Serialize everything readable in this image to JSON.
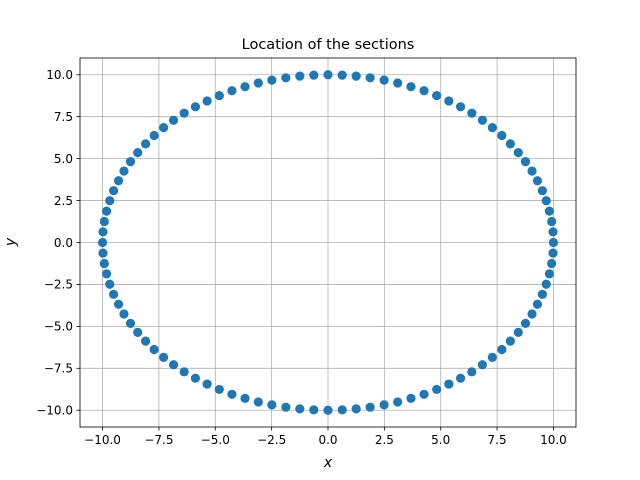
{
  "chart_data": {
    "type": "scatter",
    "title": "Location of the sections",
    "xlabel": "x",
    "ylabel": "y",
    "xlim": [
      -11,
      11
    ],
    "ylim": [
      -11,
      11
    ],
    "grid": true,
    "marker_color": "#1f77b4",
    "xticks": [
      -10.0,
      -7.5,
      -5.0,
      -2.5,
      0.0,
      2.5,
      5.0,
      7.5,
      10.0
    ],
    "xtick_labels": [
      "−10.0",
      "−7.5",
      "−5.0",
      "−2.5",
      "0.0",
      "2.5",
      "5.0",
      "7.5",
      "10.0"
    ],
    "yticks": [
      10.0,
      7.5,
      5.0,
      2.5,
      0.0,
      -2.5,
      -5.0,
      -7.5,
      -10.0
    ],
    "ytick_labels": [
      "10.0",
      "7.5",
      "5.0",
      "2.5",
      "0.0",
      "−2.5",
      "−5.0",
      "−7.5",
      "−10.0"
    ],
    "series": [
      {
        "x": [
          10.0,
          9.98,
          9.92,
          9.82,
          9.68,
          9.51,
          9.29,
          9.05,
          8.76,
          8.44,
          8.09,
          7.71,
          7.29,
          6.85,
          6.38,
          5.88,
          5.36,
          4.82,
          4.26,
          3.68,
          3.09,
          2.49,
          1.87,
          1.25,
          0.63,
          0.0,
          -0.63,
          -1.25,
          -1.87,
          -2.49,
          -3.09,
          -3.68,
          -4.26,
          -4.82,
          -5.36,
          -5.88,
          -6.38,
          -6.85,
          -7.29,
          -7.71,
          -8.09,
          -8.44,
          -8.76,
          -9.05,
          -9.29,
          -9.51,
          -9.68,
          -9.82,
          -9.92,
          -9.98,
          -10.0,
          -9.98,
          -9.92,
          -9.82,
          -9.68,
          -9.51,
          -9.29,
          -9.05,
          -8.76,
          -8.44,
          -8.09,
          -7.71,
          -7.29,
          -6.85,
          -6.38,
          -5.88,
          -5.36,
          -4.82,
          -4.26,
          -3.68,
          -3.09,
          -2.49,
          -1.87,
          -1.25,
          -0.63,
          0.0,
          0.63,
          1.25,
          1.87,
          2.49,
          3.09,
          3.68,
          4.26,
          4.82,
          5.36,
          5.88,
          6.38,
          6.85,
          7.29,
          7.71,
          8.09,
          8.44,
          8.76,
          9.05,
          9.29,
          9.51,
          9.68,
          9.82,
          9.92,
          9.98
        ],
        "y": [
          0.0,
          0.63,
          1.25,
          1.87,
          2.49,
          3.09,
          3.68,
          4.26,
          4.82,
          5.36,
          5.88,
          6.38,
          6.85,
          7.29,
          7.71,
          8.09,
          8.44,
          8.76,
          9.05,
          9.29,
          9.51,
          9.68,
          9.82,
          9.92,
          9.98,
          10.0,
          9.98,
          9.92,
          9.82,
          9.68,
          9.51,
          9.29,
          9.05,
          8.76,
          8.44,
          8.09,
          7.71,
          7.29,
          6.85,
          6.38,
          5.88,
          5.36,
          4.82,
          4.26,
          3.68,
          3.09,
          2.49,
          1.87,
          1.25,
          0.63,
          0.0,
          -0.63,
          -1.25,
          -1.87,
          -2.49,
          -3.09,
          -3.68,
          -4.26,
          -4.82,
          -5.36,
          -5.88,
          -6.38,
          -6.85,
          -7.29,
          -7.71,
          -8.09,
          -8.44,
          -8.76,
          -9.05,
          -9.29,
          -9.51,
          -9.68,
          -9.82,
          -9.92,
          -9.98,
          -10.0,
          -9.98,
          -9.92,
          -9.82,
          -9.68,
          -9.51,
          -9.29,
          -9.05,
          -8.76,
          -8.44,
          -8.09,
          -7.71,
          -7.29,
          -6.85,
          -6.38,
          -5.88,
          -5.36,
          -4.82,
          -4.26,
          -3.68,
          -3.09,
          -2.49,
          -1.87,
          -1.25,
          -0.63
        ]
      }
    ]
  }
}
